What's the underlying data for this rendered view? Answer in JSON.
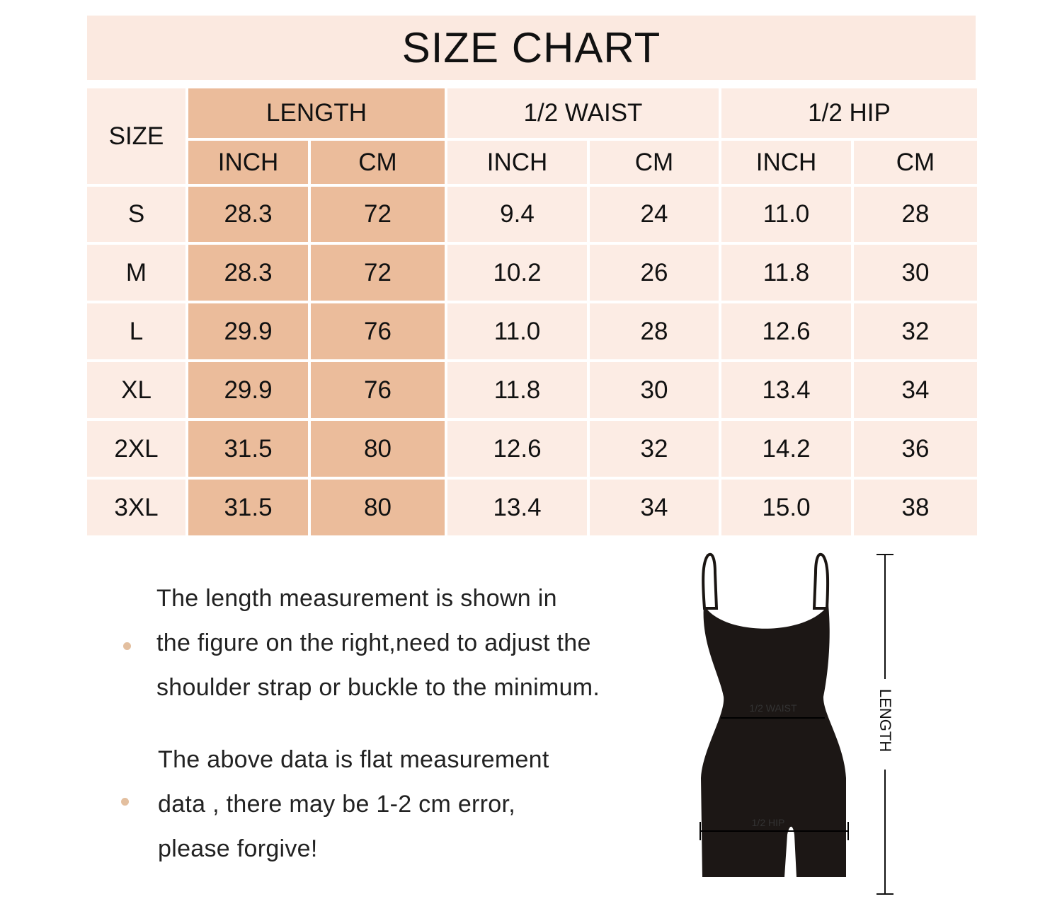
{
  "title": "SIZE CHART",
  "table": {
    "size_header": "SIZE",
    "groups": [
      "LENGTH",
      "1/2 WAIST",
      "1/2 HIP"
    ],
    "units": [
      "INCH",
      "CM",
      "INCH",
      "CM",
      "INCH",
      "CM"
    ],
    "rows": [
      [
        "S",
        "28.3",
        "72",
        "9.4",
        "24",
        "11.0",
        "28"
      ],
      [
        "M",
        "28.3",
        "72",
        "10.2",
        "26",
        "11.8",
        "30"
      ],
      [
        "L",
        "29.9",
        "76",
        "11.0",
        "28",
        "12.6",
        "32"
      ],
      [
        "XL",
        "29.9",
        "76",
        "11.8",
        "30",
        "13.4",
        "34"
      ],
      [
        "2XL",
        "31.5",
        "80",
        "12.6",
        "32",
        "14.2",
        "36"
      ],
      [
        "3XL",
        "31.5",
        "80",
        "13.4",
        "34",
        "15.0",
        "38"
      ]
    ]
  },
  "notes": [
    [
      "The length measurement is shown in",
      "the figure on the right,need to adjust the",
      "shoulder strap or buckle to the minimum."
    ],
    [
      "The above data is flat measurement",
      "data , there may be 1-2 cm error,",
      "please forgive!"
    ]
  ],
  "figure": {
    "waist_label": "1/2 WAIST",
    "hip_label": "1/2 HIP",
    "length_label": "LENGTH"
  },
  "colors": {
    "title_band": "#fbe9e0",
    "cell": "#fcece4",
    "length_cell": "#ebbc9b",
    "bullet": "#e3bf9f"
  }
}
